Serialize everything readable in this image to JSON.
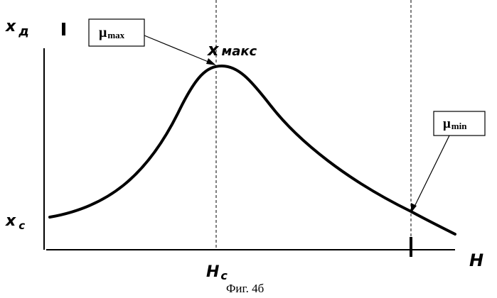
{
  "y_axis_label": {
    "main": "x",
    "sub": "д"
  },
  "x_axis_label": "H",
  "y_start_label": {
    "main": "x",
    "sub": "c"
  },
  "x_center_label": {
    "main": "H",
    "sub": "c"
  },
  "peak_label": {
    "main": "x",
    "sub": "макс"
  },
  "mu_max_box": {
    "main": "μ",
    "sub": "max"
  },
  "mu_min_box": {
    "main": "μ",
    "sub": "min"
  },
  "caption": "Фиг. 4б"
}
